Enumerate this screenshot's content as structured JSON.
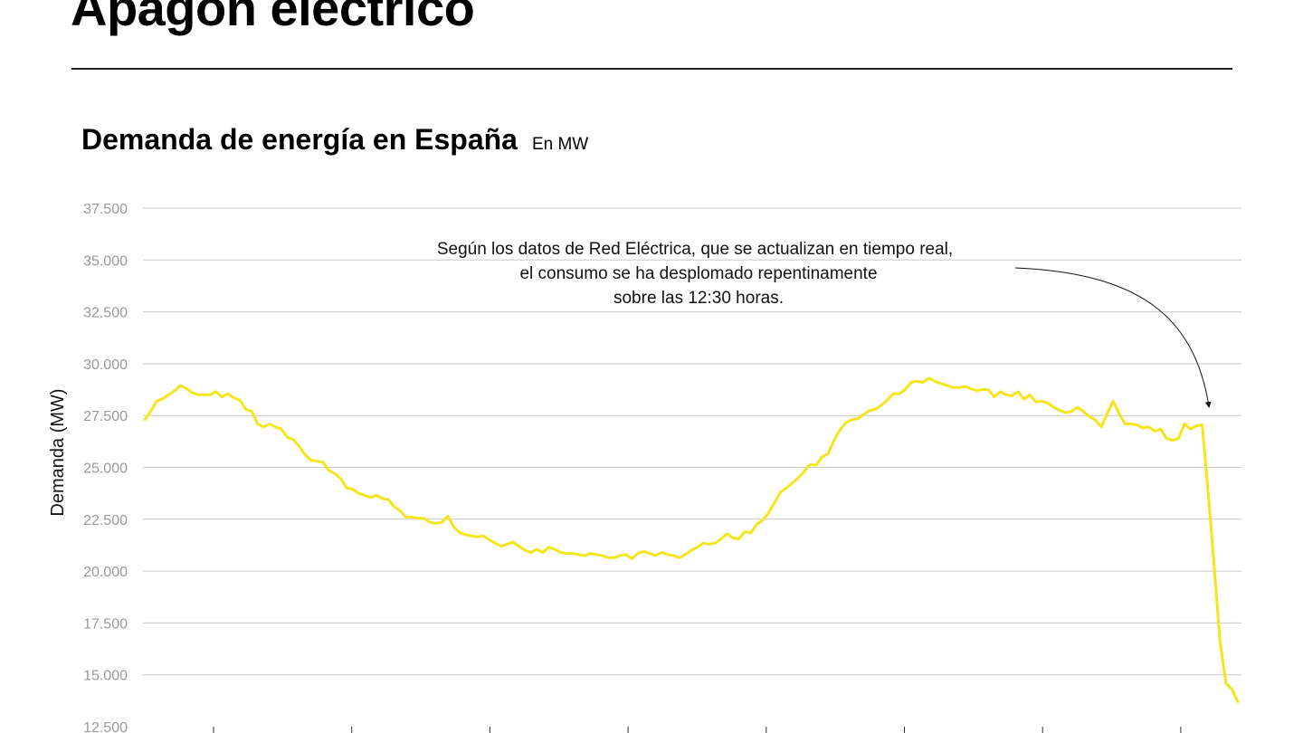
{
  "header": {
    "headline": "Apagón eléctrico"
  },
  "chart_title": {
    "main": "Demanda de energía en España",
    "unit": "En MW"
  },
  "chart_data": {
    "type": "line",
    "title": "Demanda de energía en España",
    "subtitle": "En MW",
    "xlabel": "",
    "ylabel": "Demanda (MW)",
    "ylim": [
      12500,
      37500
    ],
    "yticks": [
      12500,
      15000,
      17500,
      20000,
      22500,
      25000,
      27500,
      30000,
      32500,
      35000,
      37500
    ],
    "ytick_labels": [
      "12.500",
      "15.000",
      "17.500",
      "20.000",
      "22.500",
      "25.000",
      "27.500",
      "30.000",
      "32.500",
      "35.000",
      "37.500"
    ],
    "grid": true,
    "line_color": "#F5E51C",
    "annotation": {
      "lines": [
        "Según los datos de Red Eléctrica, que se actualizan en tiempo real,",
        "el consumo se ha desplomado repentinamente",
        "sobre las 12:30 horas."
      ]
    },
    "series": [
      {
        "values": [
          27300,
          27700,
          28200,
          28300,
          28500,
          28700,
          28950,
          28800,
          28600,
          28500,
          28500,
          28500,
          28650,
          28400,
          28550,
          28350,
          28250,
          27800,
          27700,
          27100,
          26950,
          27100,
          26950,
          26850,
          26450,
          26350,
          26000,
          25600,
          25350,
          25300,
          25250,
          24850,
          24700,
          24450,
          24000,
          23950,
          23750,
          23650,
          23550,
          23650,
          23500,
          23450,
          23100,
          22900,
          22600,
          22600,
          22550,
          22550,
          22350,
          22300,
          22350,
          22650,
          22150,
          21850,
          21750,
          21700,
          21650,
          21700,
          21500,
          21350,
          21200,
          21300,
          21400,
          21200,
          21000,
          20900,
          21050,
          20900,
          21150,
          21050,
          20900,
          20850,
          20850,
          20800,
          20750,
          20850,
          20800,
          20750,
          20650,
          20650,
          20750,
          20800,
          20600,
          20850,
          20950,
          20850,
          20750,
          20900,
          20800,
          20750,
          20650,
          20800,
          21000,
          21150,
          21350,
          21300,
          21350,
          21550,
          21800,
          21600,
          21550,
          21900,
          21850,
          22250,
          22450,
          22800,
          23300,
          23800,
          24000,
          24250,
          24500,
          24800,
          25150,
          25100,
          25500,
          25650,
          26300,
          26800,
          27150,
          27300,
          27350,
          27550,
          27750,
          27800,
          28000,
          28250,
          28550,
          28550,
          28750,
          29100,
          29150,
          29100,
          29300,
          29150,
          29050,
          28950,
          28850,
          28850,
          28900,
          28800,
          28700,
          28750,
          28750,
          28400,
          28650,
          28500,
          28450,
          28650,
          28300,
          28500,
          28150,
          28200,
          28100,
          27900,
          27750,
          27650,
          27700,
          27900,
          27700,
          27450,
          27300,
          26950,
          27600,
          28200,
          27600,
          27100,
          27100,
          27050,
          26900,
          26950,
          26750,
          26850,
          26400,
          26300,
          26400,
          27100,
          26850,
          27000,
          27050,
          23800,
          20300,
          16600,
          14600,
          14300,
          13700
        ]
      }
    ]
  }
}
